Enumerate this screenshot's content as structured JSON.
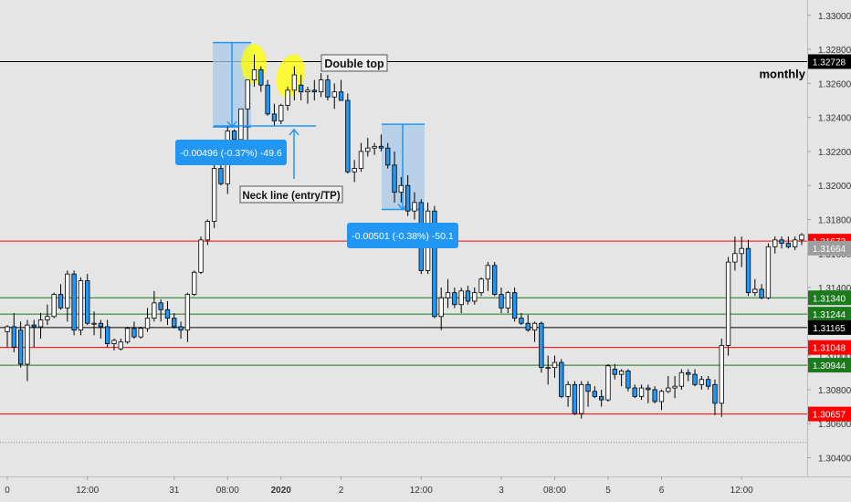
{
  "chart_data": {
    "type": "candlestick",
    "ylim": [
      1.3029,
      1.3309
    ],
    "y_ticks": [
      1.304,
      1.306,
      1.308,
      1.31,
      1.312,
      1.314,
      1.316,
      1.318,
      1.32,
      1.322,
      1.324,
      1.326,
      1.328,
      1.33
    ],
    "y_tick_labels": [
      "1.30400",
      "1.30600",
      "1.30800",
      "1.31000",
      "1.31200",
      "1.31400",
      "1.31600",
      "1.31800",
      "1.32000",
      "1.32200",
      "1.32400",
      "1.32600",
      "1.32800",
      "1.33000"
    ],
    "x_tick_labels": [
      "0",
      "12:00",
      "31",
      "08:00",
      "2020",
      "2",
      "12:00",
      "3",
      "08:00",
      "5",
      "6",
      "12:00"
    ],
    "x_tick_bold": [
      false,
      false,
      false,
      false,
      true,
      false,
      false,
      false,
      false,
      false,
      false,
      false
    ],
    "colors": {
      "background": "#e5e5e5",
      "bull": "#ffffff",
      "bear": "#2196f3",
      "candle_border": "#000000",
      "measure_fill": "#a9c9e8",
      "measure_line": "#2196f3",
      "highlight": "#ffff00",
      "red_level": "#ff0000",
      "green_level": "#1b7a1b",
      "black_level": "#000000",
      "current_price": "#9e9e9e"
    },
    "candles": [
      [
        1.3114,
        1.3118,
        1.3105,
        1.3117
      ],
      [
        1.3117,
        1.3125,
        1.3102,
        1.3105
      ],
      [
        1.3115,
        1.312,
        1.3093,
        1.3095
      ],
      [
        1.3095,
        1.3121,
        1.3085,
        1.3118
      ],
      [
        1.3118,
        1.3121,
        1.3105,
        1.3117
      ],
      [
        1.3117,
        1.3125,
        1.311,
        1.3121
      ],
      [
        1.3121,
        1.313,
        1.3118,
        1.3123
      ],
      [
        1.3123,
        1.3137,
        1.3122,
        1.3136
      ],
      [
        1.3136,
        1.3142,
        1.3127,
        1.3128
      ],
      [
        1.3128,
        1.315,
        1.312,
        1.3148
      ],
      [
        1.3148,
        1.315,
        1.3112,
        1.3115
      ],
      [
        1.3115,
        1.3146,
        1.3112,
        1.3144
      ],
      [
        1.3144,
        1.3148,
        1.3118,
        1.3119
      ],
      [
        1.3119,
        1.3126,
        1.3112,
        1.3119
      ],
      [
        1.3119,
        1.3121,
        1.311,
        1.3117
      ],
      [
        1.3117,
        1.3121,
        1.3105,
        1.3107
      ],
      [
        1.3107,
        1.311,
        1.3103,
        1.3109
      ],
      [
        1.3104,
        1.311,
        1.3103,
        1.3108
      ],
      [
        1.3108,
        1.3117,
        1.3107,
        1.3116
      ],
      [
        1.3116,
        1.312,
        1.311,
        1.3111
      ],
      [
        1.3111,
        1.3117,
        1.311,
        1.3116
      ],
      [
        1.3116,
        1.3128,
        1.3114,
        1.3122
      ],
      [
        1.3122,
        1.3138,
        1.312,
        1.3131
      ],
      [
        1.3131,
        1.3133,
        1.312,
        1.3127
      ],
      [
        1.3127,
        1.3132,
        1.3118,
        1.3122
      ],
      [
        1.3122,
        1.3125,
        1.3116,
        1.3117
      ],
      [
        1.3117,
        1.312,
        1.311,
        1.3115
      ],
      [
        1.3115,
        1.3137,
        1.3108,
        1.3136
      ],
      [
        1.3136,
        1.315,
        1.3135,
        1.3149
      ],
      [
        1.3149,
        1.317,
        1.3148,
        1.3168
      ],
      [
        1.3168,
        1.318,
        1.3165,
        1.3179
      ],
      [
        1.3179,
        1.3212,
        1.3175,
        1.321
      ],
      [
        1.321,
        1.3225,
        1.32,
        1.3201
      ],
      [
        1.3201,
        1.3235,
        1.3195,
        1.3232
      ],
      [
        1.3232,
        1.3233,
        1.322,
        1.3227
      ],
      [
        1.3227,
        1.3245,
        1.3225,
        1.3245
      ],
      [
        1.3245,
        1.3262,
        1.3225,
        1.3262
      ],
      [
        1.3262,
        1.3277,
        1.3258,
        1.3268
      ],
      [
        1.3268,
        1.327,
        1.3255,
        1.3259
      ],
      [
        1.3259,
        1.3262,
        1.3241,
        1.3242
      ],
      [
        1.3242,
        1.3248,
        1.3235,
        1.3238
      ],
      [
        1.3238,
        1.3248,
        1.3236,
        1.3247
      ],
      [
        1.3247,
        1.3258,
        1.3244,
        1.3256
      ],
      [
        1.3256,
        1.327,
        1.325,
        1.3265
      ],
      [
        1.3259,
        1.3265,
        1.325,
        1.3255
      ],
      [
        1.3255,
        1.3258,
        1.3248,
        1.3256
      ],
      [
        1.3256,
        1.3262,
        1.325,
        1.3255
      ],
      [
        1.3255,
        1.3266,
        1.3252,
        1.3262
      ],
      [
        1.3262,
        1.3265,
        1.325,
        1.3252
      ],
      [
        1.3252,
        1.326,
        1.3245,
        1.3255
      ],
      [
        1.3255,
        1.3262,
        1.325,
        1.325
      ],
      [
        1.325,
        1.3254,
        1.3207,
        1.3208
      ],
      [
        1.3208,
        1.3215,
        1.3202,
        1.321
      ],
      [
        1.321,
        1.3225,
        1.3208,
        1.322
      ],
      [
        1.322,
        1.3228,
        1.3217,
        1.3222
      ],
      [
        1.3222,
        1.3225,
        1.3218,
        1.3223
      ],
      [
        1.3223,
        1.323,
        1.322,
        1.3222
      ],
      [
        1.3222,
        1.3225,
        1.321,
        1.3212
      ],
      [
        1.3212,
        1.322,
        1.319,
        1.3196
      ],
      [
        1.3196,
        1.3205,
        1.319,
        1.32
      ],
      [
        1.32,
        1.3206,
        1.3182,
        1.3185
      ],
      [
        1.3185,
        1.3196,
        1.318,
        1.319
      ],
      [
        1.319,
        1.3192,
        1.3148,
        1.315
      ],
      [
        1.315,
        1.319,
        1.3148,
        1.3185
      ],
      [
        1.3185,
        1.3188,
        1.3122,
        1.3123
      ],
      [
        1.3123,
        1.314,
        1.3115,
        1.3134
      ],
      [
        1.3134,
        1.3145,
        1.3128,
        1.3137
      ],
      [
        1.3137,
        1.314,
        1.3128,
        1.313
      ],
      [
        1.313,
        1.314,
        1.3125,
        1.3138
      ],
      [
        1.3138,
        1.3141,
        1.313,
        1.3132
      ],
      [
        1.3132,
        1.314,
        1.313,
        1.3137
      ],
      [
        1.3137,
        1.3146,
        1.3135,
        1.3145
      ],
      [
        1.3145,
        1.3155,
        1.3138,
        1.3153
      ],
      [
        1.3153,
        1.3155,
        1.3135,
        1.3136
      ],
      [
        1.3136,
        1.314,
        1.3125,
        1.3128
      ],
      [
        1.3128,
        1.3138,
        1.3125,
        1.3137
      ],
      [
        1.3137,
        1.314,
        1.312,
        1.3122
      ],
      [
        1.3122,
        1.3125,
        1.3118,
        1.3119
      ],
      [
        1.3119,
        1.3124,
        1.3114,
        1.3115
      ],
      [
        1.3115,
        1.312,
        1.3108,
        1.3119
      ],
      [
        1.3119,
        1.312,
        1.309,
        1.3093
      ],
      [
        1.3093,
        1.31,
        1.3083,
        1.3093
      ],
      [
        1.3093,
        1.31,
        1.3087,
        1.3096
      ],
      [
        1.3096,
        1.3098,
        1.3075,
        1.3076
      ],
      [
        1.3076,
        1.3085,
        1.307,
        1.3083
      ],
      [
        1.3083,
        1.3085,
        1.3065,
        1.3066
      ],
      [
        1.3066,
        1.3085,
        1.3063,
        1.3083
      ],
      [
        1.3083,
        1.3085,
        1.307,
        1.3079
      ],
      [
        1.3079,
        1.3082,
        1.3075,
        1.3076
      ],
      [
        1.3076,
        1.308,
        1.307,
        1.3074
      ],
      [
        1.3074,
        1.3095,
        1.3073,
        1.3094
      ],
      [
        1.3092,
        1.3095,
        1.3086,
        1.3089
      ],
      [
        1.3089,
        1.3092,
        1.3082,
        1.3091
      ],
      [
        1.3091,
        1.3092,
        1.3079,
        1.3081
      ],
      [
        1.3081,
        1.3083,
        1.3075,
        1.3076
      ],
      [
        1.3076,
        1.3083,
        1.3074,
        1.3081
      ],
      [
        1.3081,
        1.3083,
        1.3072,
        1.308
      ],
      [
        1.308,
        1.3082,
        1.3072,
        1.3073
      ],
      [
        1.3073,
        1.308,
        1.3068,
        1.3079
      ],
      [
        1.3079,
        1.3088,
        1.3078,
        1.3081
      ],
      [
        1.3081,
        1.3088,
        1.3075,
        1.3082
      ],
      [
        1.3082,
        1.3092,
        1.308,
        1.309
      ],
      [
        1.309,
        1.3092,
        1.3085,
        1.3089
      ],
      [
        1.3089,
        1.3092,
        1.3082,
        1.3083
      ],
      [
        1.3083,
        1.3088,
        1.308,
        1.3086
      ],
      [
        1.3086,
        1.3088,
        1.308,
        1.3082
      ],
      [
        1.3083,
        1.3086,
        1.3065,
        1.3072
      ],
      [
        1.3072,
        1.311,
        1.3064,
        1.3106
      ],
      [
        1.3106,
        1.3158,
        1.31,
        1.3155
      ],
      [
        1.3155,
        1.317,
        1.315,
        1.316
      ],
      [
        1.316,
        1.317,
        1.3152,
        1.3163
      ],
      [
        1.3163,
        1.3168,
        1.3135,
        1.3137
      ],
      [
        1.3137,
        1.3145,
        1.3135,
        1.3139
      ],
      [
        1.3139,
        1.3142,
        1.3133,
        1.3134
      ],
      [
        1.3134,
        1.3166,
        1.3133,
        1.3164
      ],
      [
        1.3164,
        1.317,
        1.316,
        1.3168
      ],
      [
        1.3168,
        1.317,
        1.3163,
        1.3166
      ],
      [
        1.3166,
        1.317,
        1.3163,
        1.3164
      ],
      [
        1.3164,
        1.317,
        1.3162,
        1.3168
      ],
      [
        1.3168,
        1.3172,
        1.3165,
        1.3171
      ]
    ],
    "levels": [
      {
        "value": 1.32728,
        "label": "1.32728",
        "kind": "black",
        "text": "monthly"
      },
      {
        "value": 1.31673,
        "label": "1.31673",
        "kind": "red"
      },
      {
        "value": 1.31664,
        "label": "1.31664",
        "kind": "current"
      },
      {
        "value": 1.3134,
        "label": "1.31340",
        "kind": "green"
      },
      {
        "value": 1.31244,
        "label": "1.31244",
        "kind": "green"
      },
      {
        "value": 1.31165,
        "label": "1.31165",
        "kind": "black"
      },
      {
        "value": 1.31048,
        "label": "1.31048",
        "kind": "red"
      },
      {
        "value": 1.30944,
        "label": "1.30944",
        "kind": "green"
      },
      {
        "value": 1.30657,
        "label": "1.30657",
        "kind": "red"
      }
    ],
    "dotted_level": 1.3049,
    "annotations": [
      {
        "text": "Double top",
        "value": 1.3275
      },
      {
        "text": "Neck line (entry/TP)",
        "value": 1.3235
      }
    ],
    "measures": [
      {
        "label": "-0.00496 (-0.37%) -49.6",
        "top": 1.3284,
        "bottom": 1.32344
      },
      {
        "label": "-0.00501 (-0.38%) -50.1",
        "top": 1.3236,
        "bottom": 1.31859
      }
    ]
  }
}
